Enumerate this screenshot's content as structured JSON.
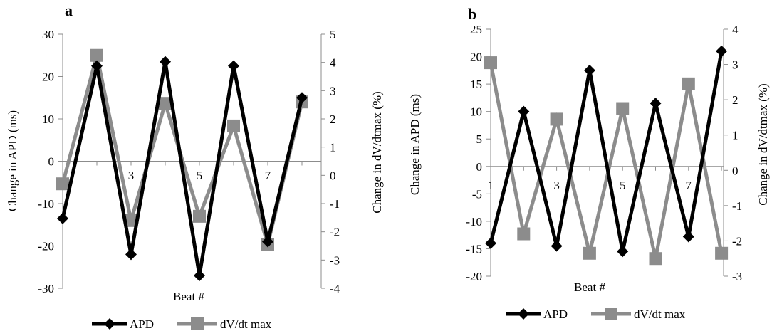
{
  "chart_data": [
    {
      "type": "line",
      "panel_label": "a",
      "xlabel": "Beat #",
      "ylabel": "Change in APD (ms)",
      "y2label": "Change in dV/dtmax (%)",
      "x": [
        1,
        2,
        3,
        4,
        5,
        6,
        7,
        8
      ],
      "x_tick_labels": [
        "3",
        "5",
        "7"
      ],
      "ylim": [
        -30,
        30
      ],
      "y_ticks": [
        "30",
        "20",
        "10",
        "0",
        "-10",
        "-20",
        "-30"
      ],
      "y2lim": [
        -4,
        5
      ],
      "y2_ticks": [
        "5",
        "4",
        "3",
        "2",
        "1",
        "0",
        "-1",
        "-2",
        "-3",
        "-4"
      ],
      "grid": false,
      "legend": "bottom",
      "series": [
        {
          "name": "APD",
          "axis": "left",
          "color": "#000000",
          "marker": "diamond",
          "values": [
            -13.5,
            22.5,
            -22,
            23.5,
            -27,
            22.5,
            -19,
            15
          ]
        },
        {
          "name": "dV/dt max",
          "axis": "right",
          "color": "#8c8c8c",
          "marker": "square",
          "values": [
            -0.3,
            4.25,
            -1.6,
            2.55,
            -1.45,
            1.75,
            -2.45,
            2.6
          ]
        }
      ]
    },
    {
      "type": "line",
      "panel_label": "b",
      "xlabel": "Beat #",
      "ylabel": "Change in APD (ms)",
      "y2label": "Change in dV/dtmax (%)",
      "x": [
        1,
        2,
        3,
        4,
        5,
        6,
        7,
        8
      ],
      "x_tick_labels": [
        "1",
        "3",
        "5",
        "7"
      ],
      "ylim": [
        -20,
        25
      ],
      "y_ticks": [
        "25",
        "20",
        "15",
        "10",
        "5",
        "0",
        "-5",
        "-10",
        "-15",
        "-20"
      ],
      "y2lim": [
        -3,
        4
      ],
      "y2_ticks": [
        "4",
        "3",
        "2",
        "1",
        "0",
        "-1",
        "-2",
        "-3"
      ],
      "grid": false,
      "legend": "bottom",
      "series": [
        {
          "name": "APD",
          "axis": "left",
          "color": "#000000",
          "marker": "diamond",
          "values": [
            -14,
            10,
            -14.5,
            17.5,
            -15.5,
            11.5,
            -12.8,
            21
          ]
        },
        {
          "name": "dV/dt max",
          "axis": "right",
          "color": "#8c8c8c",
          "marker": "square",
          "values": [
            3.05,
            -1.8,
            1.45,
            -2.35,
            1.75,
            -2.5,
            2.45,
            -2.35
          ]
        }
      ]
    }
  ]
}
